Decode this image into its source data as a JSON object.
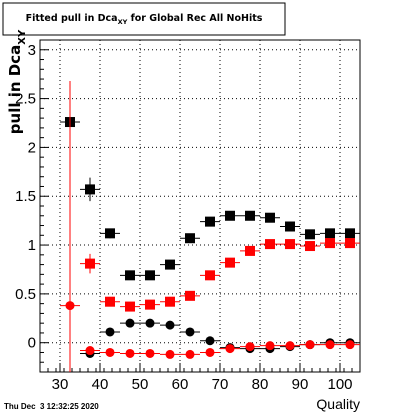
{
  "chart_data": {
    "type": "scatter",
    "title_main": "Fitted pull in Dca",
    "title_sub": "XY",
    "title_rest": " for Global Rec All NoHits",
    "ylabel_main": "pull in Dca",
    "ylabel_sub": "XY",
    "xlabel": "Quality",
    "timestamp": "Thu Dec  3 12:32:25 2020",
    "xlim": [
      25,
      105
    ],
    "ylim": [
      -0.3,
      3.1
    ],
    "xticks": [
      30,
      40,
      50,
      60,
      70,
      80,
      90,
      100
    ],
    "yticks": [
      0,
      0.5,
      1,
      1.5,
      2,
      2.5,
      3
    ],
    "ytick_labels": [
      "0",
      "0.5",
      "1",
      "1.5",
      "2",
      "2.5",
      "3"
    ],
    "grid": true,
    "series": [
      {
        "color": "#000000",
        "marker": "square",
        "points": [
          {
            "x": 32.5,
            "y": 2.26,
            "err": 0.42
          },
          {
            "x": 37.5,
            "y": 1.57,
            "err": 0.12
          },
          {
            "x": 42.5,
            "y": 1.12,
            "err": 0.05
          },
          {
            "x": 47.5,
            "y": 0.69,
            "err": 0.0
          },
          {
            "x": 52.5,
            "y": 0.69,
            "err": 0.0
          },
          {
            "x": 57.5,
            "y": 0.8,
            "err": 0.0
          },
          {
            "x": 62.5,
            "y": 1.07,
            "err": 0.0
          },
          {
            "x": 67.5,
            "y": 1.24,
            "err": 0.0
          },
          {
            "x": 72.5,
            "y": 1.3,
            "err": 0.0
          },
          {
            "x": 77.5,
            "y": 1.3,
            "err": 0.0
          },
          {
            "x": 82.5,
            "y": 1.28,
            "err": 0.0
          },
          {
            "x": 87.5,
            "y": 1.19,
            "err": 0.0
          },
          {
            "x": 92.5,
            "y": 1.11,
            "err": 0.0
          },
          {
            "x": 97.5,
            "y": 1.12,
            "err": 0.0
          },
          {
            "x": 102.5,
            "y": 1.12,
            "err": 0.0
          }
        ]
      },
      {
        "color": "#ff0000",
        "marker": "square",
        "points": [
          {
            "x": 37.5,
            "y": 0.81,
            "err": 0.1
          },
          {
            "x": 42.5,
            "y": 0.42,
            "err": 0.0
          },
          {
            "x": 47.5,
            "y": 0.37,
            "err": 0.0
          },
          {
            "x": 52.5,
            "y": 0.39,
            "err": 0.0
          },
          {
            "x": 57.5,
            "y": 0.42,
            "err": 0.0
          },
          {
            "x": 62.5,
            "y": 0.48,
            "err": 0.0
          },
          {
            "x": 67.5,
            "y": 0.69,
            "err": 0.0
          },
          {
            "x": 72.5,
            "y": 0.82,
            "err": 0.0
          },
          {
            "x": 77.5,
            "y": 0.94,
            "err": 0.0
          },
          {
            "x": 82.5,
            "y": 1.01,
            "err": 0.0
          },
          {
            "x": 87.5,
            "y": 1.01,
            "err": 0.0
          },
          {
            "x": 92.5,
            "y": 0.99,
            "err": 0.0
          },
          {
            "x": 97.5,
            "y": 1.02,
            "err": 0.0
          },
          {
            "x": 102.5,
            "y": 1.02,
            "err": 0.0
          }
        ]
      },
      {
        "color": "#000000",
        "marker": "circle",
        "points": [
          {
            "x": 37.5,
            "y": -0.11,
            "err": 0.04
          },
          {
            "x": 42.5,
            "y": 0.11,
            "err": 0.0
          },
          {
            "x": 47.5,
            "y": 0.2,
            "err": 0.0
          },
          {
            "x": 52.5,
            "y": 0.2,
            "err": 0.0
          },
          {
            "x": 57.5,
            "y": 0.18,
            "err": 0.0
          },
          {
            "x": 62.5,
            "y": 0.11,
            "err": 0.0
          },
          {
            "x": 67.5,
            "y": 0.02,
            "err": 0.0
          },
          {
            "x": 72.5,
            "y": -0.05,
            "err": 0.0
          },
          {
            "x": 77.5,
            "y": -0.06,
            "err": 0.0
          },
          {
            "x": 82.5,
            "y": -0.06,
            "err": 0.0
          },
          {
            "x": 87.5,
            "y": -0.04,
            "err": 0.0
          },
          {
            "x": 92.5,
            "y": -0.02,
            "err": 0.0
          },
          {
            "x": 97.5,
            "y": 0.0,
            "err": 0.0
          },
          {
            "x": 102.5,
            "y": 0.0,
            "err": 0.0
          }
        ]
      },
      {
        "color": "#ff0000",
        "marker": "circle",
        "points": [
          {
            "x": 32.5,
            "y": 0.38,
            "err": 2.3
          },
          {
            "x": 37.5,
            "y": -0.08,
            "err": 0.03
          },
          {
            "x": 42.5,
            "y": -0.1,
            "err": 0.0
          },
          {
            "x": 47.5,
            "y": -0.11,
            "err": 0.0
          },
          {
            "x": 52.5,
            "y": -0.11,
            "err": 0.0
          },
          {
            "x": 57.5,
            "y": -0.12,
            "err": 0.0
          },
          {
            "x": 62.5,
            "y": -0.12,
            "err": 0.0
          },
          {
            "x": 67.5,
            "y": -0.1,
            "err": 0.0
          },
          {
            "x": 72.5,
            "y": -0.06,
            "err": 0.0
          },
          {
            "x": 77.5,
            "y": -0.04,
            "err": 0.0
          },
          {
            "x": 82.5,
            "y": -0.03,
            "err": 0.0
          },
          {
            "x": 87.5,
            "y": -0.03,
            "err": 0.0
          },
          {
            "x": 92.5,
            "y": -0.02,
            "err": 0.0
          },
          {
            "x": 97.5,
            "y": -0.02,
            "err": 0.0
          },
          {
            "x": 102.5,
            "y": -0.02,
            "err": 0.0
          }
        ]
      }
    ]
  }
}
